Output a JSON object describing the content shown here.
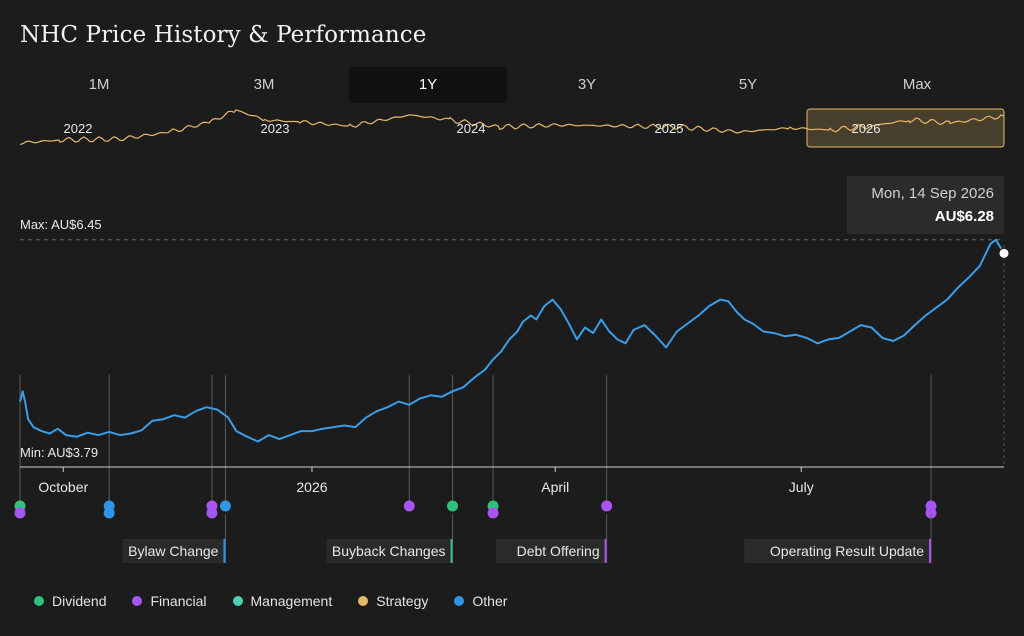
{
  "title": "NHC Price History & Performance",
  "ranges": [
    {
      "label": "1M",
      "active": false
    },
    {
      "label": "3M",
      "active": false
    },
    {
      "label": "1Y",
      "active": true
    },
    {
      "label": "3Y",
      "active": false
    },
    {
      "label": "5Y",
      "active": false
    },
    {
      "label": "Max",
      "active": false
    }
  ],
  "navigator": {
    "years": [
      "2022",
      "2023",
      "2024",
      "2025",
      "2026"
    ],
    "highlight_year": "2026"
  },
  "tooltip": {
    "date": "Mon, 14 Sep 2026",
    "price": "AU$6.28"
  },
  "colors": {
    "background": "#1c1c1c",
    "price_line": "#3a9de8",
    "navigator_line": "#e6b96a",
    "Dividend": "#2ec27e",
    "Financial": "#a855f7",
    "Management": "#4fd1b5",
    "Strategy": "#e6b96a",
    "Other": "#2f95e6"
  },
  "legend": [
    "Dividend",
    "Financial",
    "Management",
    "Strategy",
    "Other"
  ],
  "chart_data": {
    "type": "line",
    "title": "NHC Price History & Performance",
    "currency": "AU$",
    "max_label": "Max: AU$6.45",
    "min_label": "Min: AU$3.79",
    "max": 6.45,
    "min": 3.79,
    "ylim": [
      3.6,
      7.2
    ],
    "xlim": [
      "2025-09-15",
      "2026-09-14"
    ],
    "x_ticks": [
      {
        "label": "October",
        "date": "2025-10-01"
      },
      {
        "label": "2026",
        "date": "2026-01-01"
      },
      {
        "label": "April",
        "date": "2026-04-01"
      },
      {
        "label": "July",
        "date": "2026-07-01"
      }
    ],
    "series": [
      {
        "points": [
          [
            "2025-09-15",
            4.42
          ],
          [
            "2025-09-16",
            4.55
          ],
          [
            "2025-09-17",
            4.4
          ],
          [
            "2025-09-18",
            4.2
          ],
          [
            "2025-09-20",
            4.1
          ],
          [
            "2025-09-23",
            4.05
          ],
          [
            "2025-09-26",
            4.02
          ],
          [
            "2025-09-29",
            4.08
          ],
          [
            "2025-10-02",
            4.0
          ],
          [
            "2025-10-06",
            3.98
          ],
          [
            "2025-10-10",
            4.03
          ],
          [
            "2025-10-14",
            4.0
          ],
          [
            "2025-10-18",
            4.04
          ],
          [
            "2025-10-22",
            4.0
          ],
          [
            "2025-10-26",
            4.02
          ],
          [
            "2025-10-30",
            4.06
          ],
          [
            "2025-11-03",
            4.18
          ],
          [
            "2025-11-07",
            4.2
          ],
          [
            "2025-11-11",
            4.25
          ],
          [
            "2025-11-15",
            4.22
          ],
          [
            "2025-11-19",
            4.3
          ],
          [
            "2025-11-23",
            4.35
          ],
          [
            "2025-11-27",
            4.32
          ],
          [
            "2025-12-01",
            4.22
          ],
          [
            "2025-12-04",
            4.05
          ],
          [
            "2025-12-08",
            3.98
          ],
          [
            "2025-12-12",
            3.92
          ],
          [
            "2025-12-16",
            4.0
          ],
          [
            "2025-12-20",
            3.95
          ],
          [
            "2025-12-24",
            4.0
          ],
          [
            "2025-12-28",
            4.05
          ],
          [
            "2026-01-01",
            4.05
          ],
          [
            "2026-01-05",
            4.08
          ],
          [
            "2026-01-09",
            4.1
          ],
          [
            "2026-01-13",
            4.12
          ],
          [
            "2026-01-17",
            4.1
          ],
          [
            "2026-01-21",
            4.22
          ],
          [
            "2026-01-25",
            4.3
          ],
          [
            "2026-01-29",
            4.35
          ],
          [
            "2026-02-02",
            4.42
          ],
          [
            "2026-02-06",
            4.38
          ],
          [
            "2026-02-10",
            4.46
          ],
          [
            "2026-02-14",
            4.5
          ],
          [
            "2026-02-18",
            4.48
          ],
          [
            "2026-02-22",
            4.55
          ],
          [
            "2026-02-26",
            4.6
          ],
          [
            "2026-03-02",
            4.72
          ],
          [
            "2026-03-06",
            4.82
          ],
          [
            "2026-03-09",
            4.95
          ],
          [
            "2026-03-12",
            5.05
          ],
          [
            "2026-03-15",
            5.2
          ],
          [
            "2026-03-18",
            5.3
          ],
          [
            "2026-03-20",
            5.42
          ],
          [
            "2026-03-23",
            5.5
          ],
          [
            "2026-03-25",
            5.45
          ],
          [
            "2026-03-28",
            5.62
          ],
          [
            "2026-03-31",
            5.7
          ],
          [
            "2026-04-03",
            5.58
          ],
          [
            "2026-04-06",
            5.4
          ],
          [
            "2026-04-09",
            5.2
          ],
          [
            "2026-04-12",
            5.35
          ],
          [
            "2026-04-15",
            5.28
          ],
          [
            "2026-04-18",
            5.45
          ],
          [
            "2026-04-21",
            5.3
          ],
          [
            "2026-04-24",
            5.2
          ],
          [
            "2026-04-27",
            5.15
          ],
          [
            "2026-04-30",
            5.32
          ],
          [
            "2026-05-04",
            5.38
          ],
          [
            "2026-05-08",
            5.25
          ],
          [
            "2026-05-12",
            5.1
          ],
          [
            "2026-05-16",
            5.3
          ],
          [
            "2026-05-20",
            5.4
          ],
          [
            "2026-05-24",
            5.5
          ],
          [
            "2026-05-28",
            5.62
          ],
          [
            "2026-06-01",
            5.7
          ],
          [
            "2026-06-04",
            5.68
          ],
          [
            "2026-06-07",
            5.55
          ],
          [
            "2026-06-10",
            5.45
          ],
          [
            "2026-06-13",
            5.4
          ],
          [
            "2026-06-17",
            5.3
          ],
          [
            "2026-06-21",
            5.28
          ],
          [
            "2026-06-25",
            5.24
          ],
          [
            "2026-06-29",
            5.26
          ],
          [
            "2026-07-03",
            5.22
          ],
          [
            "2026-07-07",
            5.15
          ],
          [
            "2026-07-11",
            5.2
          ],
          [
            "2026-07-15",
            5.22
          ],
          [
            "2026-07-19",
            5.3
          ],
          [
            "2026-07-23",
            5.38
          ],
          [
            "2026-07-27",
            5.35
          ],
          [
            "2026-07-31",
            5.22
          ],
          [
            "2026-08-04",
            5.18
          ],
          [
            "2026-08-08",
            5.25
          ],
          [
            "2026-08-12",
            5.38
          ],
          [
            "2026-08-16",
            5.5
          ],
          [
            "2026-08-20",
            5.6
          ],
          [
            "2026-08-24",
            5.7
          ],
          [
            "2026-08-28",
            5.85
          ],
          [
            "2026-09-01",
            5.98
          ],
          [
            "2026-09-05",
            6.12
          ],
          [
            "2026-09-09",
            6.4
          ],
          [
            "2026-09-11",
            6.45
          ],
          [
            "2026-09-14",
            6.28
          ]
        ]
      }
    ],
    "events": [
      {
        "date": "2025-09-15",
        "categories": [
          "Dividend",
          "Financial"
        ]
      },
      {
        "date": "2025-10-18",
        "categories": [
          "Other",
          "Other"
        ]
      },
      {
        "date": "2025-11-25",
        "categories": [
          "Financial",
          "Financial"
        ]
      },
      {
        "date": "2025-11-30",
        "categories": [
          "Other"
        ],
        "label": "Bylaw Change"
      },
      {
        "date": "2026-02-06",
        "categories": [
          "Financial"
        ]
      },
      {
        "date": "2026-02-22",
        "categories": [
          "Dividend"
        ],
        "label": "Buyback Changes"
      },
      {
        "date": "2026-03-09",
        "categories": [
          "Dividend",
          "Financial"
        ]
      },
      {
        "date": "2026-04-20",
        "categories": [
          "Financial"
        ],
        "label": "Debt Offering"
      },
      {
        "date": "2026-08-18",
        "categories": [
          "Financial",
          "Financial"
        ],
        "label": "Operating Result Update"
      }
    ]
  }
}
